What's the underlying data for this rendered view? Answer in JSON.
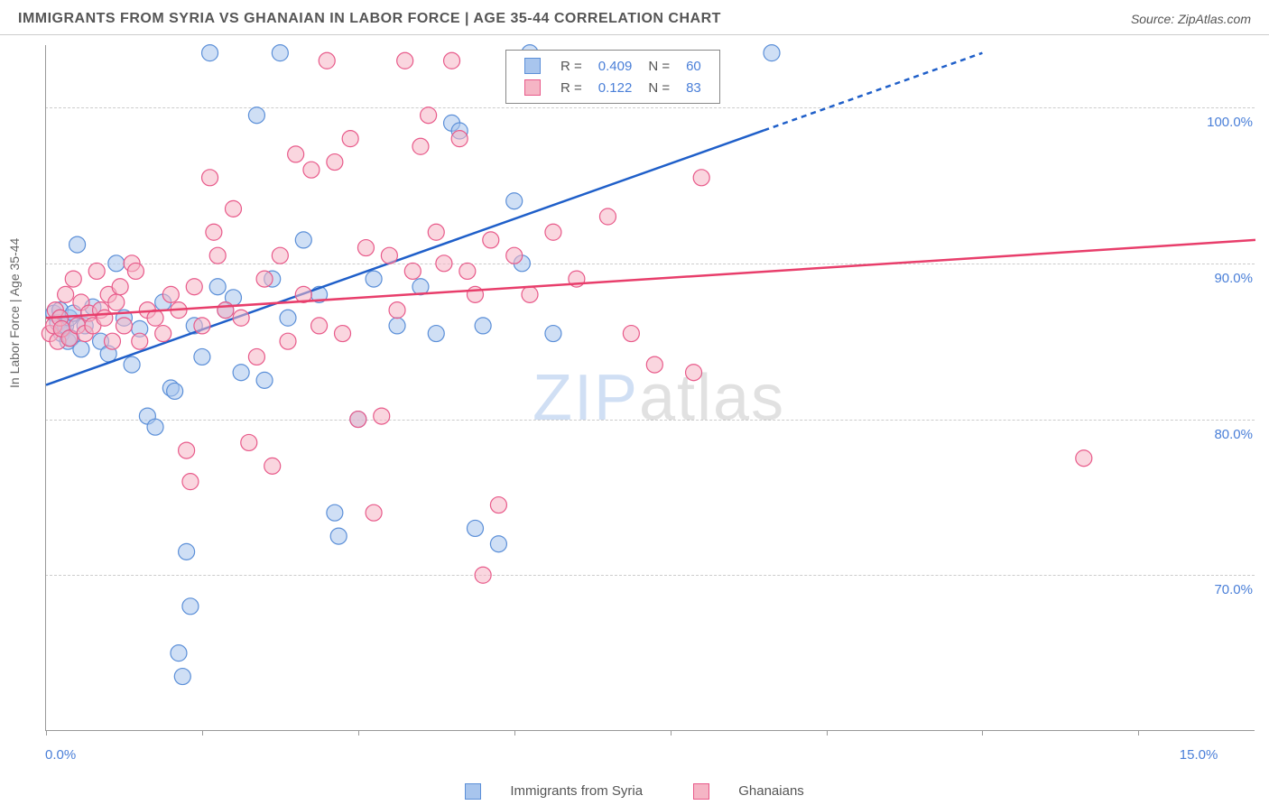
{
  "title": "IMMIGRANTS FROM SYRIA VS GHANAIAN IN LABOR FORCE | AGE 35-44 CORRELATION CHART",
  "source": "Source: ZipAtlas.com",
  "ylabel": "In Labor Force | Age 35-44",
  "watermark_bold": "ZIP",
  "watermark_thin": "atlas",
  "chart": {
    "type": "scatter-correlation",
    "xlim": [
      0,
      15.5
    ],
    "ylim": [
      60,
      104
    ],
    "xticks": [
      0,
      2,
      4,
      6,
      8,
      10,
      12,
      14
    ],
    "xtick_labels": {
      "0": "0.0%",
      "15": "15.0%"
    },
    "yticks": [
      70,
      80,
      90,
      100
    ],
    "ytick_labels": {
      "70": "70.0%",
      "80": "80.0%",
      "90": "90.0%",
      "100": "100.0%"
    },
    "grid_color": "#cccccc",
    "background_color": "#ffffff",
    "axis_color": "#999999",
    "series": [
      {
        "name": "Immigrants from Syria",
        "color_fill": "#a8c5ed",
        "color_stroke": "#5b8fd8",
        "fill_opacity": 0.55,
        "marker_radius": 9,
        "R": "0.409",
        "N": "60",
        "regression": {
          "x1": 0,
          "y1": 82.2,
          "x2": 12.0,
          "y2": 103.5,
          "dash_after_x": 9.2,
          "color": "#1f5fc9",
          "width": 2.5
        },
        "points": [
          [
            0.1,
            86.8
          ],
          [
            0.15,
            86.2
          ],
          [
            0.18,
            87.0
          ],
          [
            0.2,
            85.5
          ],
          [
            0.22,
            85.8
          ],
          [
            0.25,
            86.0
          ],
          [
            0.28,
            85.0
          ],
          [
            0.3,
            86.5
          ],
          [
            0.32,
            85.2
          ],
          [
            0.35,
            86.8
          ],
          [
            0.4,
            91.2
          ],
          [
            0.45,
            84.5
          ],
          [
            0.5,
            86.0
          ],
          [
            0.6,
            87.2
          ],
          [
            0.7,
            85.0
          ],
          [
            0.8,
            84.2
          ],
          [
            0.9,
            90.0
          ],
          [
            1.0,
            86.5
          ],
          [
            1.1,
            83.5
          ],
          [
            1.2,
            85.8
          ],
          [
            1.3,
            80.2
          ],
          [
            1.4,
            79.5
          ],
          [
            1.5,
            87.5
          ],
          [
            1.6,
            82.0
          ],
          [
            1.65,
            81.8
          ],
          [
            1.7,
            65.0
          ],
          [
            1.75,
            63.5
          ],
          [
            1.8,
            71.5
          ],
          [
            1.85,
            68.0
          ],
          [
            1.9,
            86.0
          ],
          [
            2.0,
            84.0
          ],
          [
            2.1,
            103.5
          ],
          [
            2.2,
            88.5
          ],
          [
            2.3,
            87.0
          ],
          [
            2.4,
            87.8
          ],
          [
            2.5,
            83.0
          ],
          [
            2.7,
            99.5
          ],
          [
            2.8,
            82.5
          ],
          [
            2.9,
            89.0
          ],
          [
            3.0,
            103.5
          ],
          [
            3.1,
            86.5
          ],
          [
            3.3,
            91.5
          ],
          [
            3.5,
            88.0
          ],
          [
            3.7,
            74.0
          ],
          [
            3.75,
            72.5
          ],
          [
            4.0,
            80.0
          ],
          [
            4.2,
            89.0
          ],
          [
            4.5,
            86.0
          ],
          [
            4.8,
            88.5
          ],
          [
            5.0,
            85.5
          ],
          [
            5.2,
            99.0
          ],
          [
            5.3,
            98.5
          ],
          [
            5.5,
            73.0
          ],
          [
            5.6,
            86.0
          ],
          [
            5.8,
            72.0
          ],
          [
            6.0,
            94.0
          ],
          [
            6.1,
            90.0
          ],
          [
            6.2,
            103.5
          ],
          [
            6.5,
            85.5
          ],
          [
            9.3,
            103.5
          ]
        ]
      },
      {
        "name": "Ghanaians",
        "color_fill": "#f5b5c5",
        "color_stroke": "#e85a8a",
        "fill_opacity": 0.55,
        "marker_radius": 9,
        "R": "0.122",
        "N": "83",
        "regression": {
          "x1": 0,
          "y1": 86.5,
          "x2": 15.5,
          "y2": 91.5,
          "color": "#e83e6b",
          "width": 2.5
        },
        "points": [
          [
            0.05,
            85.5
          ],
          [
            0.1,
            86.0
          ],
          [
            0.12,
            87.0
          ],
          [
            0.15,
            85.0
          ],
          [
            0.18,
            86.5
          ],
          [
            0.2,
            85.8
          ],
          [
            0.25,
            88.0
          ],
          [
            0.3,
            85.2
          ],
          [
            0.35,
            89.0
          ],
          [
            0.4,
            86.0
          ],
          [
            0.45,
            87.5
          ],
          [
            0.5,
            85.5
          ],
          [
            0.55,
            86.8
          ],
          [
            0.6,
            86.0
          ],
          [
            0.65,
            89.5
          ],
          [
            0.7,
            87.0
          ],
          [
            0.75,
            86.5
          ],
          [
            0.8,
            88.0
          ],
          [
            0.85,
            85.0
          ],
          [
            0.9,
            87.5
          ],
          [
            0.95,
            88.5
          ],
          [
            1.0,
            86.0
          ],
          [
            1.1,
            90.0
          ],
          [
            1.15,
            89.5
          ],
          [
            1.2,
            85.0
          ],
          [
            1.3,
            87.0
          ],
          [
            1.4,
            86.5
          ],
          [
            1.5,
            85.5
          ],
          [
            1.6,
            88.0
          ],
          [
            1.7,
            87.0
          ],
          [
            1.8,
            78.0
          ],
          [
            1.85,
            76.0
          ],
          [
            1.9,
            88.5
          ],
          [
            2.0,
            86.0
          ],
          [
            2.1,
            95.5
          ],
          [
            2.15,
            92.0
          ],
          [
            2.2,
            90.5
          ],
          [
            2.3,
            87.0
          ],
          [
            2.4,
            93.5
          ],
          [
            2.5,
            86.5
          ],
          [
            2.6,
            78.5
          ],
          [
            2.7,
            84.0
          ],
          [
            2.8,
            89.0
          ],
          [
            2.9,
            77.0
          ],
          [
            3.0,
            90.5
          ],
          [
            3.1,
            85.0
          ],
          [
            3.2,
            97.0
          ],
          [
            3.3,
            88.0
          ],
          [
            3.4,
            96.0
          ],
          [
            3.5,
            86.0
          ],
          [
            3.6,
            103.0
          ],
          [
            3.7,
            96.5
          ],
          [
            3.8,
            85.5
          ],
          [
            3.9,
            98.0
          ],
          [
            4.0,
            80.0
          ],
          [
            4.1,
            91.0
          ],
          [
            4.2,
            74.0
          ],
          [
            4.3,
            80.2
          ],
          [
            4.4,
            90.5
          ],
          [
            4.5,
            87.0
          ],
          [
            4.6,
            103.0
          ],
          [
            4.7,
            89.5
          ],
          [
            4.8,
            97.5
          ],
          [
            4.9,
            99.5
          ],
          [
            5.0,
            92.0
          ],
          [
            5.1,
            90.0
          ],
          [
            5.2,
            103.0
          ],
          [
            5.3,
            98.0
          ],
          [
            5.4,
            89.5
          ],
          [
            5.5,
            88.0
          ],
          [
            5.6,
            70.0
          ],
          [
            5.7,
            91.5
          ],
          [
            5.8,
            74.5
          ],
          [
            6.0,
            90.5
          ],
          [
            6.2,
            88.0
          ],
          [
            6.5,
            92.0
          ],
          [
            6.8,
            89.0
          ],
          [
            7.2,
            93.0
          ],
          [
            7.5,
            85.5
          ],
          [
            7.8,
            83.5
          ],
          [
            8.3,
            83.0
          ],
          [
            8.4,
            95.5
          ],
          [
            13.3,
            77.5
          ]
        ]
      }
    ]
  },
  "bottom_legend": [
    {
      "label": "Immigrants from Syria",
      "fill": "#a8c5ed",
      "stroke": "#5b8fd8"
    },
    {
      "label": "Ghanaians",
      "fill": "#f5b5c5",
      "stroke": "#e85a8a"
    }
  ]
}
